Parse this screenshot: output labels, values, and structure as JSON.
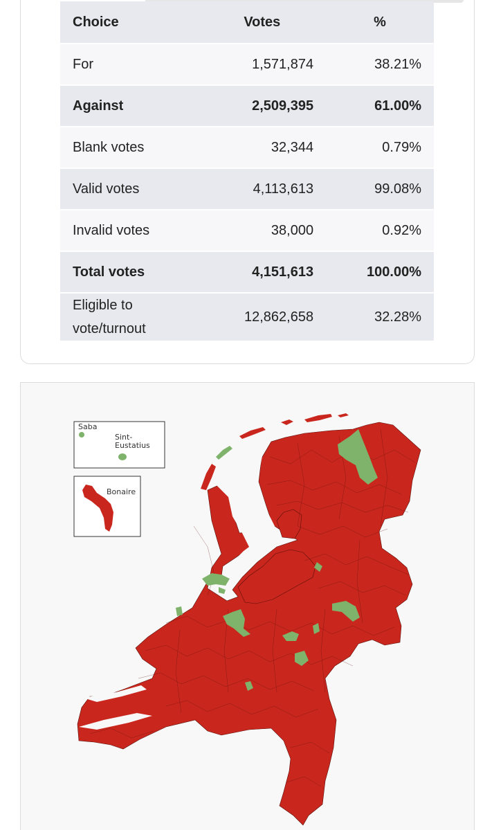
{
  "table": {
    "headers": [
      "Choice",
      "Votes",
      "%"
    ],
    "rows": [
      {
        "choice": "For",
        "votes": "1,571,874",
        "pct": "38.21%"
      },
      {
        "choice": "Against",
        "votes": "2,509,395",
        "pct": "61.00%"
      },
      {
        "choice": "Blank votes",
        "votes": "32,344",
        "pct": "0.79%"
      },
      {
        "choice": "Valid votes",
        "votes": "4,113,613",
        "pct": "99.08%"
      },
      {
        "choice": "Invalid votes",
        "votes": "38,000",
        "pct": "0.92%"
      },
      {
        "choice": "Total votes",
        "votes": "4,151,613",
        "pct": "100.00%"
      },
      {
        "choice_line1": "Eligible to",
        "choice_line2": "vote/turnout",
        "votes": "12,862,658",
        "pct": "32.28%"
      }
    ]
  },
  "map": {
    "inset_labels": {
      "saba": "Saba",
      "sint_eustatius_1": "Sint-",
      "sint_eustatius_2": "Eustatius",
      "bonaire": "Bonaire"
    },
    "colors": {
      "against": "#c9271d",
      "for": "#7fb36c",
      "border": "#222222"
    }
  }
}
